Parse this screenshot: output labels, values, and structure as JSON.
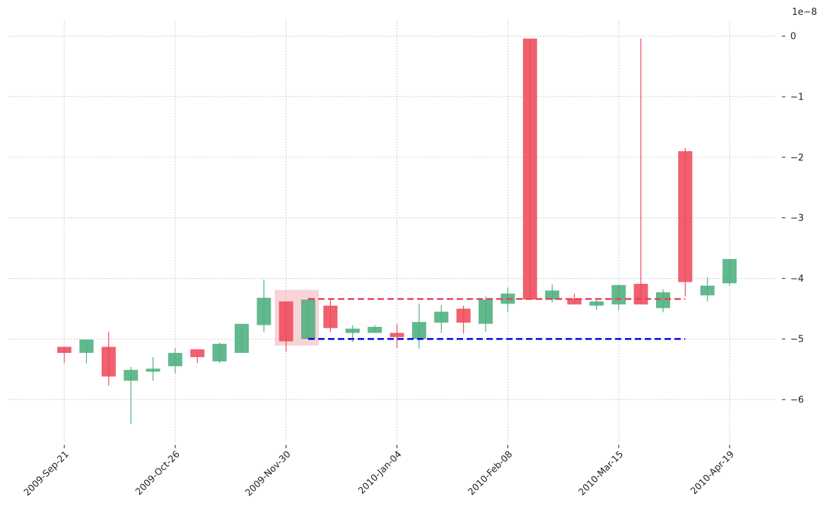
{
  "chart_data": {
    "type": "candlestick",
    "title": "",
    "xlabel": "",
    "ylabel": "",
    "y_scale_label": "1e−8",
    "y_axis_side": "right",
    "ylim": [
      -6.7,
      0.27
    ],
    "grid": true,
    "colors": {
      "up": "#4caf7d",
      "down": "#ee4a5a",
      "resistance_line": "#e8405a",
      "support_line": "#0000dd",
      "highlight_box": "#f4b6bf",
      "grid": "#b0b0b0"
    },
    "y_ticks": [
      {
        "value": 0,
        "label": "0"
      },
      {
        "value": -1,
        "label": "−1"
      },
      {
        "value": -2,
        "label": "−2"
      },
      {
        "value": -3,
        "label": "−3"
      },
      {
        "value": -4,
        "label": "−4"
      },
      {
        "value": -5,
        "label": "−5"
      },
      {
        "value": -6,
        "label": "−6"
      }
    ],
    "x_ticks": [
      {
        "index": 0,
        "label": "2009-Sep-21"
      },
      {
        "index": 5,
        "label": "2009-Oct-26"
      },
      {
        "index": 10,
        "label": "2009-Nov-30"
      },
      {
        "index": 15,
        "label": "2010-Jan-04"
      },
      {
        "index": 20,
        "label": "2010-Feb-08"
      },
      {
        "index": 25,
        "label": "2010-Mar-15"
      },
      {
        "index": 30,
        "label": "2010-Apr-19"
      }
    ],
    "candles": [
      {
        "date": "2009-09-21",
        "open": -5.13,
        "high": -5.13,
        "low": -5.4,
        "close": -5.23
      },
      {
        "date": "2009-09-28",
        "open": -5.23,
        "high": -5.01,
        "low": -5.4,
        "close": -5.01
      },
      {
        "date": "2009-10-05",
        "open": -5.13,
        "high": -4.88,
        "low": -5.77,
        "close": -5.62
      },
      {
        "date": "2009-10-12",
        "open": -5.69,
        "high": -5.46,
        "low": -6.4,
        "close": -5.51
      },
      {
        "date": "2009-10-19",
        "open": -5.54,
        "high": -5.3,
        "low": -5.69,
        "close": -5.49
      },
      {
        "date": "2009-10-26",
        "open": -5.45,
        "high": -5.15,
        "low": -5.57,
        "close": -5.23
      },
      {
        "date": "2009-11-02",
        "open": -5.17,
        "high": -5.17,
        "low": -5.4,
        "close": -5.3
      },
      {
        "date": "2009-11-09",
        "open": -5.37,
        "high": -5.06,
        "low": -5.4,
        "close": -5.08
      },
      {
        "date": "2009-11-16",
        "open": -5.23,
        "high": -4.75,
        "low": -5.23,
        "close": -4.75
      },
      {
        "date": "2009-11-23",
        "open": -4.77,
        "high": -4.02,
        "low": -4.88,
        "close": -4.32
      },
      {
        "date": "2009-11-30",
        "open": -4.38,
        "high": -4.38,
        "low": -5.21,
        "close": -5.04
      },
      {
        "date": "2009-12-07",
        "open": -5.0,
        "high": -4.33,
        "low": -5.0,
        "close": -4.35
      },
      {
        "date": "2009-12-14",
        "open": -4.45,
        "high": -4.33,
        "low": -4.89,
        "close": -4.82
      },
      {
        "date": "2009-12-21",
        "open": -4.9,
        "high": -4.77,
        "low": -5.05,
        "close": -4.83
      },
      {
        "date": "2009-12-28",
        "open": -4.9,
        "high": -4.77,
        "low": -4.9,
        "close": -4.8
      },
      {
        "date": "2010-01-04",
        "open": -4.9,
        "high": -4.75,
        "low": -5.15,
        "close": -4.97
      },
      {
        "date": "2010-01-11",
        "open": -5.0,
        "high": -4.42,
        "low": -5.16,
        "close": -4.72
      },
      {
        "date": "2010-01-18",
        "open": -4.73,
        "high": -4.44,
        "low": -4.9,
        "close": -4.55
      },
      {
        "date": "2010-01-25",
        "open": -4.5,
        "high": -4.45,
        "low": -4.91,
        "close": -4.73
      },
      {
        "date": "2010-02-01",
        "open": -4.75,
        "high": -4.3,
        "low": -4.88,
        "close": -4.35
      },
      {
        "date": "2010-02-08",
        "open": -4.42,
        "high": -4.15,
        "low": -4.56,
        "close": -4.25
      },
      {
        "date": "2010-02-15",
        "open": -0.04,
        "high": -0.04,
        "low": -4.35,
        "close": -4.35
      },
      {
        "date": "2010-02-22",
        "open": -4.35,
        "high": -4.1,
        "low": -4.4,
        "close": -4.2
      },
      {
        "date": "2010-03-01",
        "open": -4.33,
        "high": -4.25,
        "low": -4.43,
        "close": -4.43
      },
      {
        "date": "2010-03-08",
        "open": -4.45,
        "high": -4.35,
        "low": -4.52,
        "close": -4.38
      },
      {
        "date": "2010-03-15",
        "open": -4.43,
        "high": -4.1,
        "low": -4.52,
        "close": -4.11
      },
      {
        "date": "2010-03-22",
        "open": -4.09,
        "high": -0.04,
        "low": -4.43,
        "close": -4.43
      },
      {
        "date": "2010-03-29",
        "open": -4.49,
        "high": -4.18,
        "low": -4.56,
        "close": -4.23
      },
      {
        "date": "2010-04-05",
        "open": -1.9,
        "high": -1.85,
        "low": -4.3,
        "close": -4.06
      },
      {
        "date": "2010-04-12",
        "open": -4.28,
        "high": -3.98,
        "low": -4.38,
        "close": -4.12
      },
      {
        "date": "2010-04-19",
        "open": -4.08,
        "high": -3.68,
        "low": -4.13,
        "close": -3.68
      }
    ],
    "highlight_region": {
      "from_index": 10,
      "to_index": 11,
      "y_low": -5.11,
      "y_high": -4.19
    },
    "horizontal_lines": [
      {
        "name": "resistance",
        "value": -4.34,
        "from_index": 11,
        "to_index": 28,
        "color": "#e8405a"
      },
      {
        "name": "support",
        "value": -5.0,
        "from_index": 11,
        "to_index": 28,
        "color": "#0000dd"
      }
    ]
  }
}
